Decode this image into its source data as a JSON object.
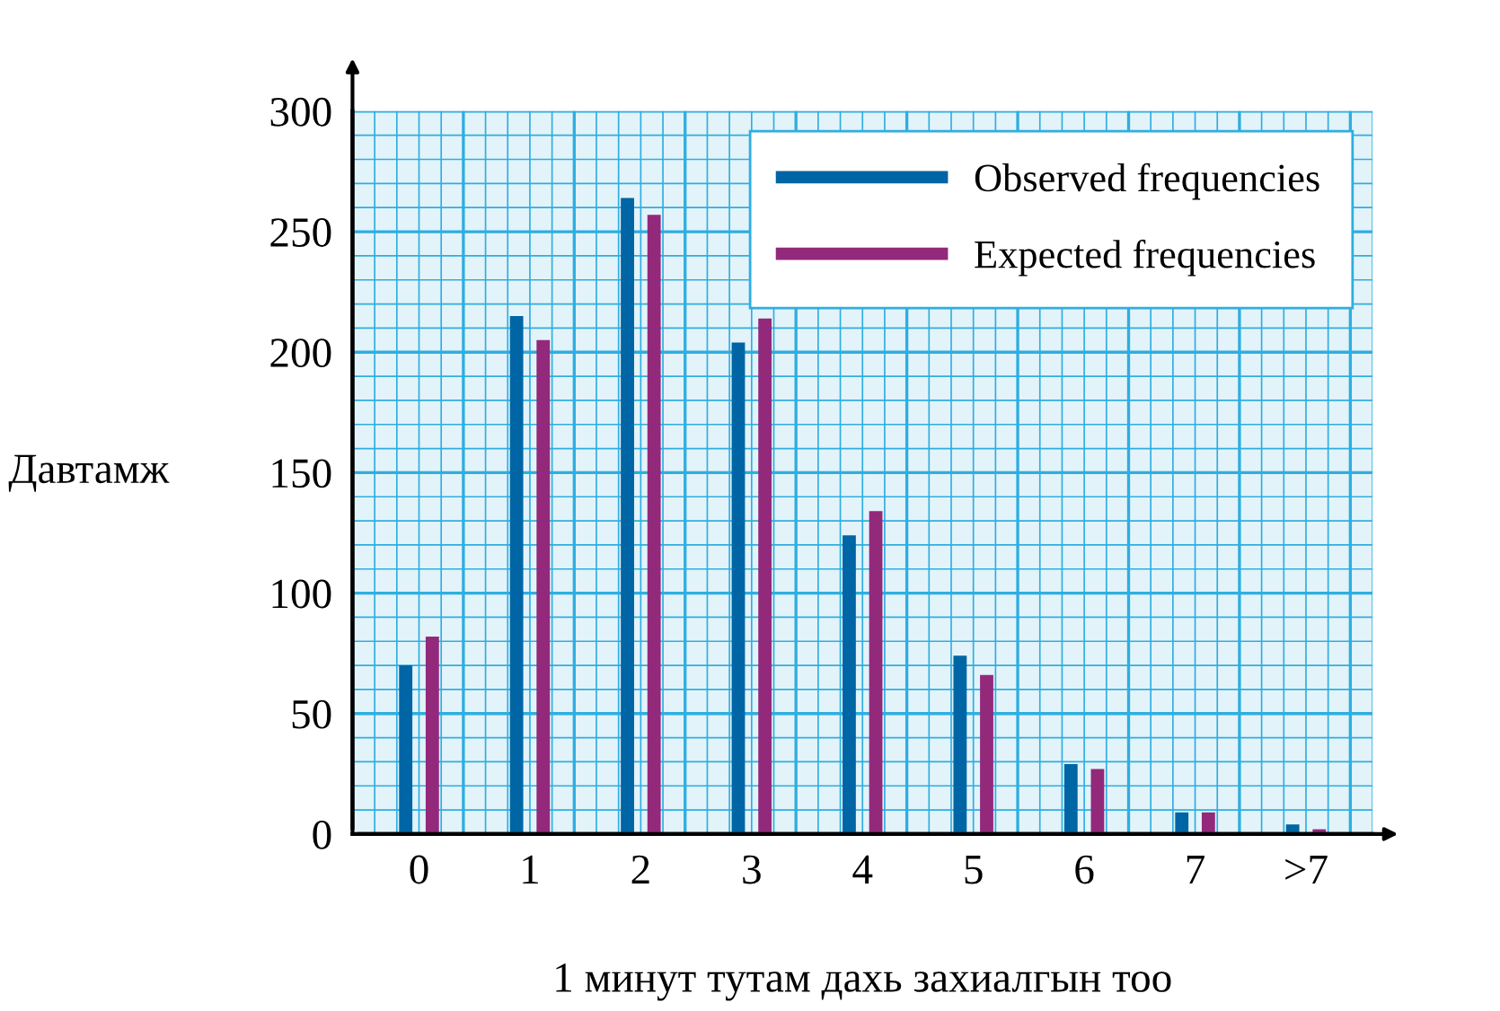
{
  "chart_data": {
    "type": "bar",
    "xlabel": "1 минут тутам дахь захиалгын тоо",
    "ylabel": "Давтамж",
    "categories": [
      "0",
      "1",
      "2",
      "3",
      "4",
      "5",
      "6",
      "7",
      ">7"
    ],
    "series": [
      {
        "name": "Observed frequencies",
        "color": "#0065a4",
        "values": [
          70,
          215,
          264,
          204,
          124,
          74,
          29,
          9,
          4
        ]
      },
      {
        "name": "Expected frequencies",
        "color": "#93297a",
        "values": [
          82,
          205,
          257,
          214,
          134,
          66,
          27,
          9,
          2
        ]
      }
    ],
    "ylim": [
      0,
      300
    ],
    "yticks": [
      0,
      50,
      100,
      150,
      200,
      250,
      300
    ],
    "grid": true,
    "legend": "top right"
  }
}
